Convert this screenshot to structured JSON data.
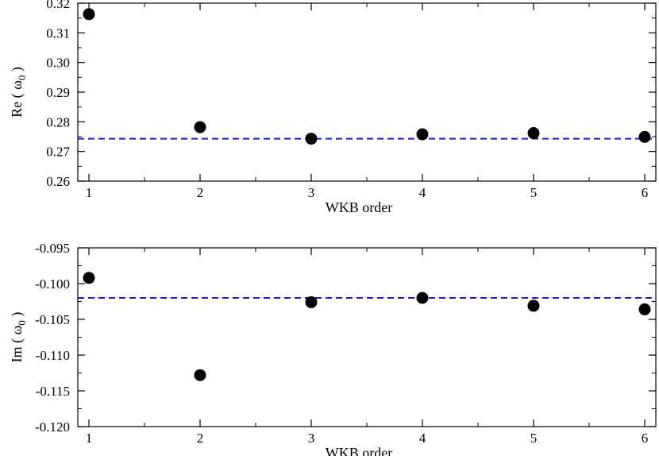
{
  "chart_data": [
    {
      "type": "scatter",
      "xlabel": "WKB order",
      "ylabel_prefix": "Re ( ω",
      "ylabel_sub": "0",
      "ylabel_suffix": " )",
      "xlim": [
        0.9,
        6.1
      ],
      "ylim": [
        0.26,
        0.32
      ],
      "xticks": [
        1,
        2,
        3,
        4,
        5,
        6
      ],
      "yticks": [
        0.26,
        0.27,
        0.28,
        0.29,
        0.3,
        0.31,
        0.32
      ],
      "ytick_labels": [
        "0.26",
        "0.27",
        "0.28",
        "0.29",
        "0.30",
        "0.31",
        "0.32"
      ],
      "x": [
        1,
        2,
        3,
        4,
        5,
        6
      ],
      "y": [
        0.3163,
        0.2782,
        0.2743,
        0.2758,
        0.2762,
        0.2749
      ],
      "reference_line": 0.2743,
      "marker_color": "#000000",
      "line_color": "#1a1acc"
    },
    {
      "type": "scatter",
      "xlabel": "WKB order",
      "ylabel_prefix": "Im ( ω",
      "ylabel_sub": "0",
      "ylabel_suffix": " )",
      "xlim": [
        0.9,
        6.1
      ],
      "ylim": [
        -0.12,
        -0.095
      ],
      "xticks": [
        1,
        2,
        3,
        4,
        5,
        6
      ],
      "yticks": [
        -0.12,
        -0.115,
        -0.11,
        -0.105,
        -0.1,
        -0.095
      ],
      "ytick_labels": [
        "-0.120",
        "-0.115",
        "-0.110",
        "-0.105",
        "-0.100",
        "-0.095"
      ],
      "x": [
        1,
        2,
        3,
        4,
        5,
        6
      ],
      "y": [
        -0.0992,
        -0.1128,
        -0.1026,
        -0.102,
        -0.1031,
        -0.1036
      ],
      "reference_line": -0.102,
      "marker_color": "#000000",
      "line_color": "#1a1acc"
    }
  ]
}
